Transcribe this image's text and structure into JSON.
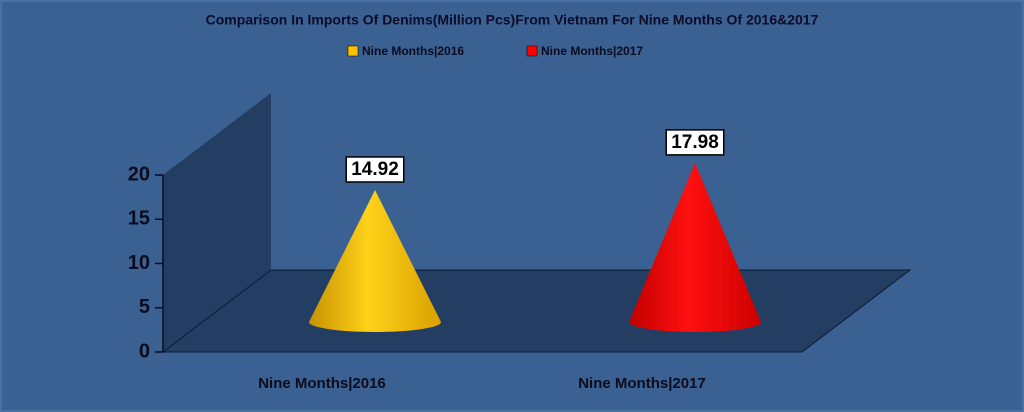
{
  "chart_data": {
    "type": "cone",
    "title": "Comparison In Imports Of Denims(Million Pcs)From Vietnam For Nine Months Of 2016&2017",
    "categories": [
      "Nine Months|2016",
      "Nine Months|2017"
    ],
    "values": [
      14.92,
      17.98
    ],
    "colors": [
      "#ffc000",
      "#ff0000"
    ],
    "ylim": [
      0,
      20
    ],
    "yticks": [
      0,
      5,
      10,
      15,
      20
    ],
    "legend": "top"
  }
}
